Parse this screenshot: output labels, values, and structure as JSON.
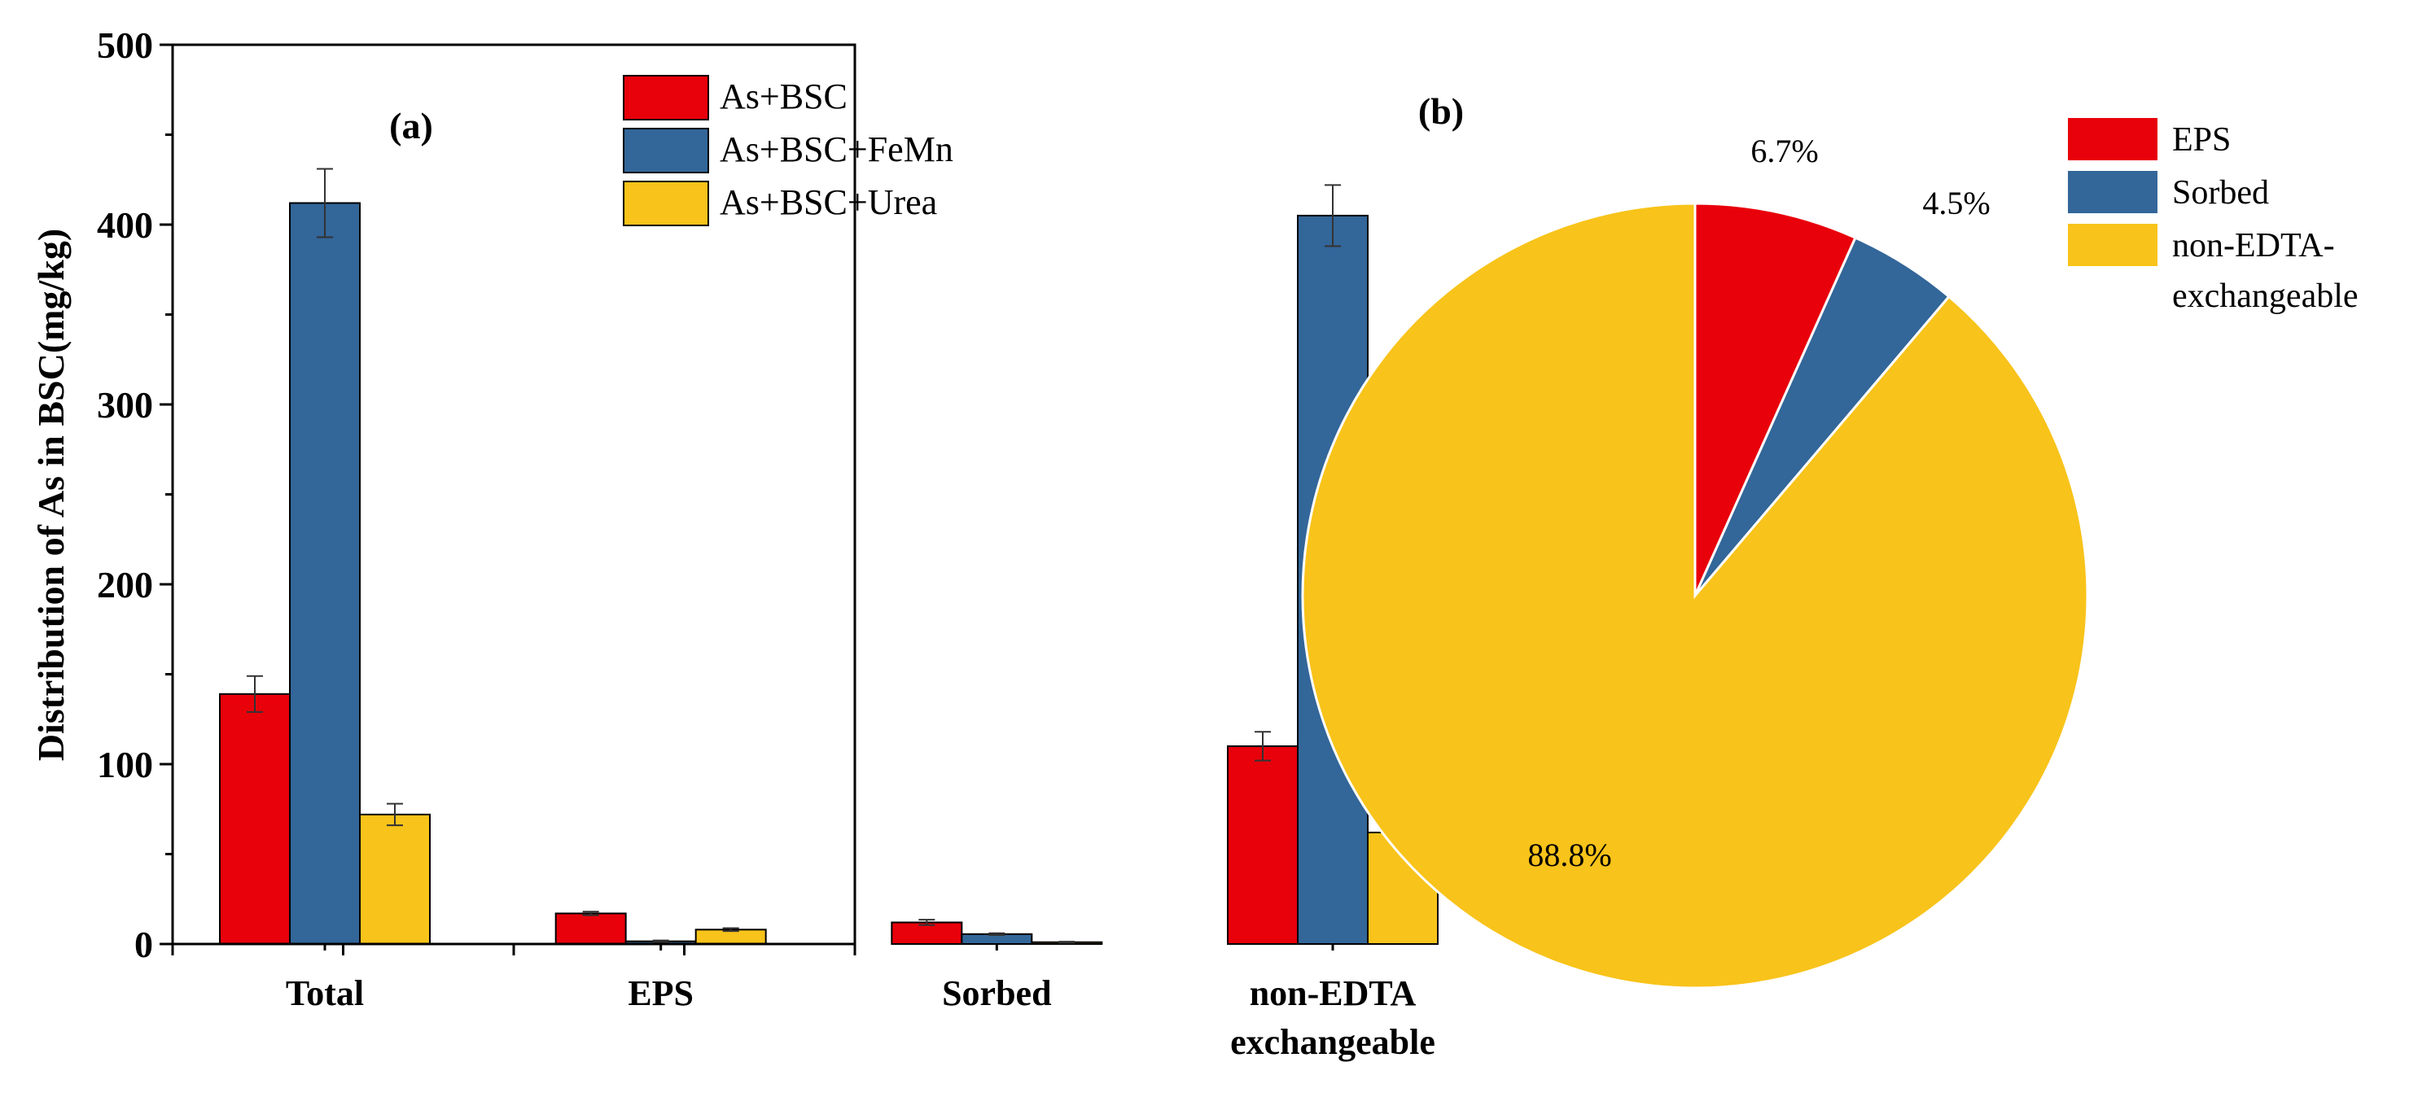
{
  "chart_data": [
    {
      "type": "bar",
      "panel_label": "(a)",
      "categories": [
        "Total",
        "EPS",
        "Sorbed",
        "non-EDTA exchangeable"
      ],
      "category_lines": [
        [
          "Total"
        ],
        [
          "EPS"
        ],
        [
          "Sorbed"
        ],
        [
          "non-EDTA",
          "exchangeable"
        ]
      ],
      "ylabel": "Distribution of As in BSC(mg/kg)",
      "xlabel": "",
      "ylim": [
        0,
        500
      ],
      "yticks": [
        0,
        100,
        200,
        300,
        400,
        500
      ],
      "yticks_labels": [
        "0",
        "100",
        "200",
        "300",
        "400",
        "500"
      ],
      "legend_position": "top-right",
      "series": [
        {
          "name": "As+BSC",
          "color": "#e8000b",
          "values": [
            139,
            17,
            12,
            110
          ],
          "errors": [
            10,
            1,
            1.5,
            8
          ]
        },
        {
          "name": "As+BSC+FeMn",
          "color": "#336699",
          "values": [
            412,
            1.5,
            5.5,
            405
          ],
          "errors": [
            19,
            0.5,
            0.5,
            17
          ]
        },
        {
          "name": "As+BSC+Urea",
          "color": "#f8c31a",
          "values": [
            72,
            8,
            1,
            62
          ],
          "errors": [
            6,
            0.8,
            0.3,
            5
          ]
        }
      ]
    },
    {
      "type": "pie",
      "panel_label": "(b)",
      "legend_position": "top-right",
      "slices": [
        {
          "name": "EPS",
          "legend_lines": [
            "EPS"
          ],
          "value": 6.7,
          "label": "6.7%",
          "color": "#e8000b"
        },
        {
          "name": "Sorbed",
          "legend_lines": [
            "Sorbed"
          ],
          "value": 4.5,
          "label": "4.5%",
          "color": "#336699"
        },
        {
          "name": "non-EDTA-exchangeable",
          "legend_lines": [
            "non-EDTA-",
            "exchangeable"
          ],
          "value": 88.8,
          "label": "88.8%",
          "color": "#f8c31a"
        }
      ]
    }
  ]
}
